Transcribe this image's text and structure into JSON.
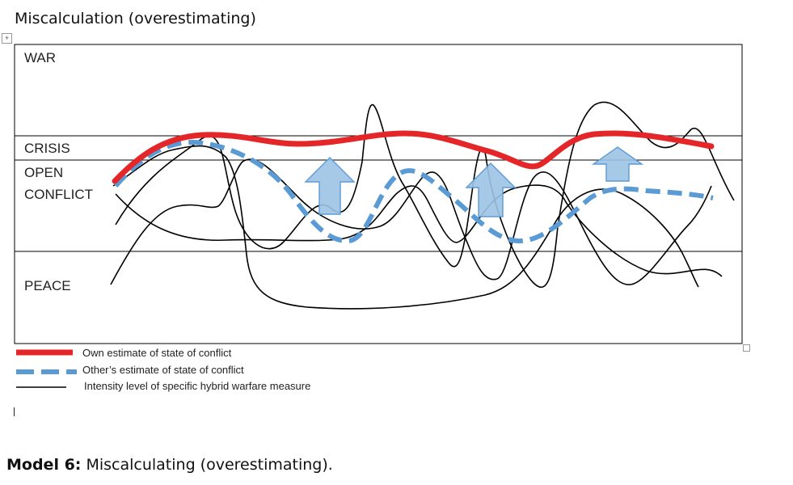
{
  "title": "Miscalculation (overestimating)",
  "zones": {
    "war": "WAR",
    "crisis": "CRISIS",
    "open_conflict_line1": "OPEN",
    "open_conflict_line2": "CONFLICT",
    "peace": "PEACE"
  },
  "legend": {
    "own": "Own estimate of state of conflict",
    "other": "Other’s estimate of state of conflict",
    "intensity": "Intensity level of specific hybrid warfare measure"
  },
  "colors": {
    "own": "#e52629",
    "other": "#5b9bd5",
    "arrow_fill": "#9dc3e6",
    "arrow_stroke": "#5b9bd5",
    "intensity": "#000000"
  },
  "caption": {
    "label": "Model 6:",
    "text": " Miscalculating (overestimating)."
  }
}
